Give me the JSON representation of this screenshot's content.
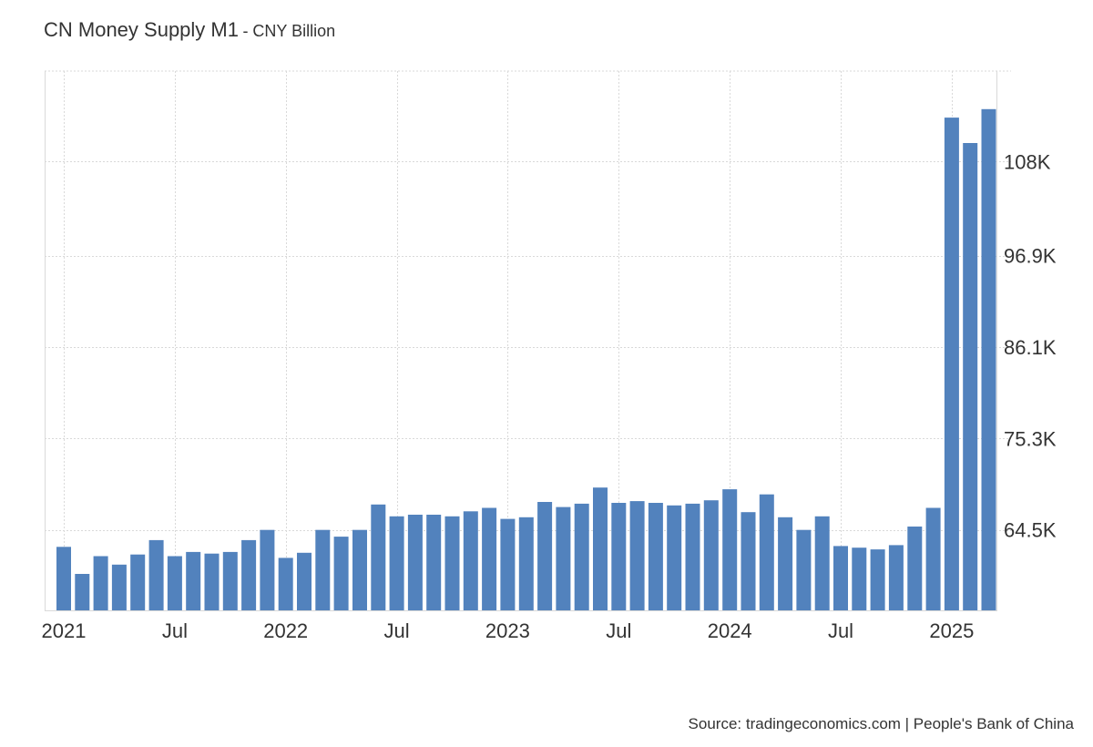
{
  "title": "CN Money Supply M1",
  "subtitle": "- CNY Billion",
  "source": "Source: tradingeconomics.com | People's Bank of China",
  "colors": {
    "bar": "#5282bd",
    "grid": "#d9d9d9",
    "axis": "#d9d9d9",
    "text": "#333333"
  },
  "chart_data": {
    "type": "bar",
    "x_tick_labels": [
      "2021",
      "Jul",
      "2022",
      "Jul",
      "2023",
      "Jul",
      "2024",
      "Jul",
      "2025"
    ],
    "x_tick_indices": [
      0,
      6,
      12,
      18,
      24,
      30,
      36,
      42,
      48
    ],
    "y_tick_values": [
      64500,
      75300,
      86100,
      96900,
      108000
    ],
    "y_tick_labels": [
      "64.5K",
      "75.3K",
      "86.1K",
      "96.9K",
      "108K"
    ],
    "ylim": [
      55000,
      118700
    ],
    "grid": true,
    "y_axis_position": "right",
    "categories": [
      "2021-01",
      "2021-02",
      "2021-03",
      "2021-04",
      "2021-05",
      "2021-06",
      "2021-07",
      "2021-08",
      "2021-09",
      "2021-10",
      "2021-11",
      "2021-12",
      "2022-01",
      "2022-02",
      "2022-03",
      "2022-04",
      "2022-05",
      "2022-06",
      "2022-07",
      "2022-08",
      "2022-09",
      "2022-10",
      "2022-11",
      "2022-12",
      "2023-01",
      "2023-02",
      "2023-03",
      "2023-04",
      "2023-05",
      "2023-06",
      "2023-07",
      "2023-08",
      "2023-09",
      "2023-10",
      "2023-11",
      "2023-12",
      "2024-01",
      "2024-02",
      "2024-03",
      "2024-04",
      "2024-05",
      "2024-06",
      "2024-07",
      "2024-08",
      "2024-09",
      "2024-10",
      "2024-11",
      "2024-12",
      "2025-01",
      "2025-02",
      "2025-03"
    ],
    "values": [
      62500,
      59300,
      61400,
      60400,
      61600,
      63300,
      61400,
      61900,
      61700,
      61900,
      63300,
      64500,
      61200,
      61800,
      64500,
      63700,
      64500,
      67500,
      66100,
      66300,
      66300,
      66100,
      66700,
      67100,
      65800,
      66000,
      67800,
      67200,
      67600,
      69500,
      67700,
      67900,
      67700,
      67400,
      67600,
      68000,
      69300,
      66600,
      68700,
      66000,
      64500,
      66100,
      62600,
      62400,
      62200,
      62700,
      64900,
      67100,
      113200,
      110200,
      114200
    ]
  }
}
